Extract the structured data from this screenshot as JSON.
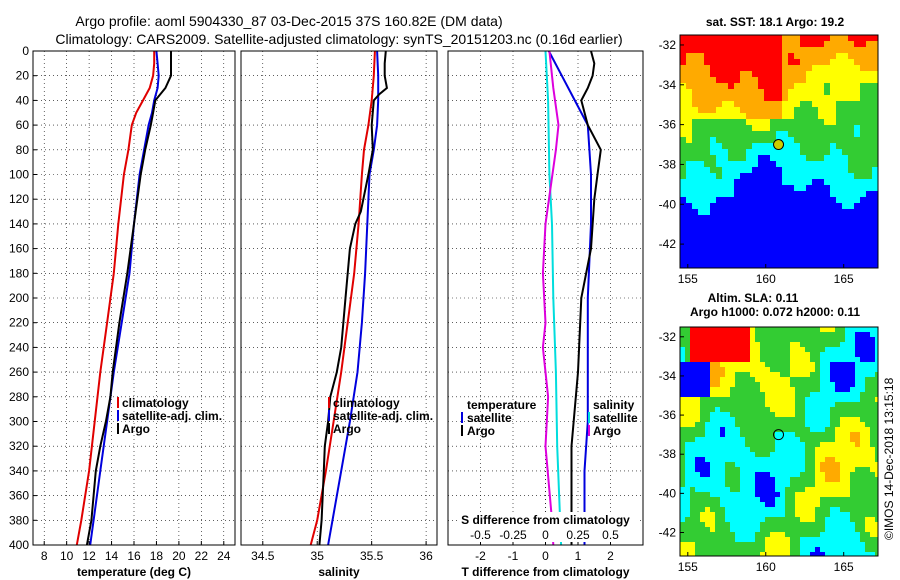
{
  "header": {
    "title_line1": "Argo profile: aoml 5904330_87 03-Dec-2015 37S 160.82E (DM data)",
    "title_line2": "Climatology: CARS2009. Satellite-adjusted climatology: synTS_20151203.nc (0.16d earlier)"
  },
  "watermark": "©IMOS 14-Dec-2018 13:15:18",
  "colors": {
    "climatology": "#e00000",
    "satellite": "#0000dd",
    "argo": "#000000",
    "t_diff_satellite": "#0000dd",
    "s_diff_satellite": "#00dddd",
    "s_diff_argo": "#dd00dd",
    "map_red": "#ff0000",
    "map_orange": "#ffaa00",
    "map_yellow": "#ffff00",
    "map_green": "#33cc33",
    "map_cyan": "#00ffff",
    "map_blue": "#0000ff",
    "marker_fill": "#cccc00"
  },
  "chart_data": [
    {
      "type": "line",
      "id": "temperature",
      "xlabel": "temperature (deg C)",
      "ylabel": "",
      "xlim": [
        7,
        25
      ],
      "ylim": [
        400,
        0
      ],
      "x_ticks": [
        8,
        10,
        12,
        14,
        16,
        18,
        20,
        22,
        24
      ],
      "y_ticks": [
        0,
        20,
        40,
        60,
        80,
        100,
        120,
        140,
        160,
        180,
        200,
        220,
        240,
        260,
        280,
        300,
        320,
        340,
        360,
        380,
        400
      ],
      "grid": true,
      "legend": [
        "climatology",
        "satellite-adj. clim.",
        "Argo"
      ],
      "series": [
        {
          "name": "climatology",
          "color": "climatology",
          "points": [
            [
              17.8,
              0
            ],
            [
              17.8,
              10
            ],
            [
              17.7,
              20
            ],
            [
              17.4,
              30
            ],
            [
              16.8,
              40
            ],
            [
              16.2,
              50
            ],
            [
              15.8,
              60
            ],
            [
              15.5,
              80
            ],
            [
              15.1,
              100
            ],
            [
              14.6,
              140
            ],
            [
              14.2,
              180
            ],
            [
              13.6,
              220
            ],
            [
              13.0,
              260
            ],
            [
              12.5,
              300
            ],
            [
              12.0,
              340
            ],
            [
              11.3,
              380
            ],
            [
              10.9,
              400
            ]
          ]
        },
        {
          "name": "satellite-adj. clim.",
          "color": "satellite",
          "points": [
            [
              18.0,
              0
            ],
            [
              18.1,
              10
            ],
            [
              18.2,
              20
            ],
            [
              18.1,
              30
            ],
            [
              17.8,
              40
            ],
            [
              17.6,
              50
            ],
            [
              17.3,
              60
            ],
            [
              16.9,
              80
            ],
            [
              16.5,
              100
            ],
            [
              16.0,
              140
            ],
            [
              15.6,
              180
            ],
            [
              14.9,
              220
            ],
            [
              14.2,
              260
            ],
            [
              13.6,
              300
            ],
            [
              13.0,
              340
            ],
            [
              12.4,
              380
            ],
            [
              12.1,
              400
            ]
          ]
        },
        {
          "name": "Argo",
          "color": "argo",
          "points": [
            [
              19.3,
              0
            ],
            [
              19.3,
              10
            ],
            [
              19.3,
              20
            ],
            [
              18.8,
              30
            ],
            [
              17.9,
              40
            ],
            [
              17.7,
              50
            ],
            [
              17.5,
              60
            ],
            [
              17.0,
              80
            ],
            [
              16.6,
              100
            ],
            [
              16.0,
              140
            ],
            [
              15.4,
              180
            ],
            [
              14.7,
              220
            ],
            [
              14.1,
              260
            ],
            [
              13.9,
              280
            ],
            [
              13.5,
              300
            ],
            [
              13.0,
              320
            ],
            [
              12.6,
              340
            ],
            [
              12.2,
              380
            ],
            [
              11.8,
              400
            ]
          ]
        }
      ]
    },
    {
      "type": "line",
      "id": "salinity",
      "xlabel": "salinity",
      "xlim": [
        34.3,
        36.1
      ],
      "ylim": [
        400,
        0
      ],
      "x_ticks": [
        34.5,
        35,
        35.5,
        36
      ],
      "grid": true,
      "legend": [
        "climatology",
        "satellite-adj. clim.",
        "Argo"
      ],
      "series": [
        {
          "name": "climatology",
          "color": "climatology",
          "points": [
            [
              35.53,
              0
            ],
            [
              35.52,
              20
            ],
            [
              35.5,
              40
            ],
            [
              35.47,
              60
            ],
            [
              35.43,
              80
            ],
            [
              35.41,
              100
            ],
            [
              35.38,
              140
            ],
            [
              35.34,
              180
            ],
            [
              35.28,
              220
            ],
            [
              35.22,
              260
            ],
            [
              35.15,
              300
            ],
            [
              35.08,
              340
            ],
            [
              35.0,
              380
            ],
            [
              34.94,
              400
            ]
          ]
        },
        {
          "name": "satellite-adj. clim.",
          "color": "satellite",
          "points": [
            [
              35.55,
              0
            ],
            [
              35.56,
              20
            ],
            [
              35.56,
              40
            ],
            [
              35.55,
              60
            ],
            [
              35.52,
              80
            ],
            [
              35.48,
              100
            ],
            [
              35.46,
              140
            ],
            [
              35.44,
              180
            ],
            [
              35.41,
              220
            ],
            [
              35.37,
              260
            ],
            [
              35.3,
              300
            ],
            [
              35.22,
              340
            ],
            [
              35.14,
              380
            ],
            [
              35.1,
              400
            ]
          ]
        },
        {
          "name": "Argo",
          "color": "argo",
          "points": [
            [
              35.63,
              0
            ],
            [
              35.62,
              10
            ],
            [
              35.62,
              20
            ],
            [
              35.64,
              30
            ],
            [
              35.57,
              35
            ],
            [
              35.52,
              40
            ],
            [
              35.5,
              60
            ],
            [
              35.51,
              80
            ],
            [
              35.47,
              100
            ],
            [
              35.4,
              130
            ],
            [
              35.35,
              140
            ],
            [
              35.3,
              160
            ],
            [
              35.26,
              200
            ],
            [
              35.22,
              240
            ],
            [
              35.18,
              260
            ],
            [
              35.12,
              280
            ],
            [
              35.1,
              300
            ],
            [
              35.07,
              320
            ],
            [
              35.06,
              340
            ],
            [
              35.05,
              360
            ],
            [
              35.04,
              380
            ],
            [
              35.02,
              400
            ]
          ]
        }
      ]
    },
    {
      "type": "line",
      "id": "differences",
      "xlabel": "T difference from climatology",
      "top_xlabel": "S difference from climatology",
      "xlim": [
        -3,
        3
      ],
      "ylim": [
        400,
        0
      ],
      "x_ticks": [
        -2,
        -1,
        0,
        1,
        2
      ],
      "top_x_ticks": [
        "-0.5",
        "-0.25",
        "0",
        "0.25",
        "0.5"
      ],
      "top_xlim": [
        -0.75,
        0.75
      ],
      "grid": true,
      "legend_left": {
        "title": "temperature",
        "items": [
          "satellite",
          "Argo"
        ]
      },
      "legend_right": {
        "title": "salinity",
        "items": [
          "satellite",
          "Argo"
        ]
      },
      "series": [
        {
          "name": "T satellite",
          "color": "t_diff_satellite",
          "axis": "T",
          "points": [
            [
              0.1,
              0
            ],
            [
              0.5,
              20
            ],
            [
              0.9,
              40
            ],
            [
              1.3,
              60
            ],
            [
              1.4,
              100
            ],
            [
              1.4,
              140
            ],
            [
              1.3,
              200
            ],
            [
              1.3,
              260
            ],
            [
              1.3,
              300
            ],
            [
              1.2,
              340
            ],
            [
              1.2,
              400
            ]
          ]
        },
        {
          "name": "T Argo",
          "color": "argo",
          "axis": "T",
          "points": [
            [
              1.4,
              0
            ],
            [
              1.5,
              10
            ],
            [
              1.45,
              20
            ],
            [
              1.3,
              30
            ],
            [
              1.1,
              40
            ],
            [
              1.3,
              60
            ],
            [
              1.7,
              80
            ],
            [
              1.6,
              100
            ],
            [
              1.5,
              120
            ],
            [
              1.4,
              160
            ],
            [
              1.1,
              200
            ],
            [
              1.0,
              260
            ],
            [
              0.8,
              320
            ],
            [
              0.8,
              400
            ]
          ]
        },
        {
          "name": "S satellite",
          "color": "s_diff_satellite",
          "axis": "S",
          "points": [
            [
              0.0,
              0
            ],
            [
              0.02,
              40
            ],
            [
              0.03,
              100
            ],
            [
              0.05,
              140
            ],
            [
              0.06,
              200
            ],
            [
              0.08,
              260
            ],
            [
              0.09,
              320
            ],
            [
              0.12,
              400
            ]
          ]
        },
        {
          "name": "S Argo",
          "color": "s_diff_argo",
          "axis": "S",
          "points": [
            [
              0.03,
              0
            ],
            [
              0.06,
              30
            ],
            [
              0.1,
              60
            ],
            [
              0.08,
              80
            ],
            [
              0.0,
              140
            ],
            [
              -0.02,
              180
            ],
            [
              0.0,
              220
            ],
            [
              -0.02,
              240
            ],
            [
              0.0,
              260
            ],
            [
              0.02,
              280
            ],
            [
              0.0,
              320
            ],
            [
              0.05,
              380
            ],
            [
              0.06,
              400
            ]
          ]
        }
      ]
    },
    {
      "type": "heatmap",
      "id": "sst-map",
      "title": "sat. SST: 18.1 Argo: 19.2",
      "xlim": [
        154.5,
        167.2
      ],
      "ylim": [
        -43.2,
        -31.5
      ],
      "x_ticks": [
        155,
        160,
        165
      ],
      "y_ticks": [
        -32,
        -34,
        -36,
        -38,
        -40,
        -42
      ],
      "marker": [
        160.82,
        -37
      ]
    },
    {
      "type": "heatmap",
      "id": "sla-map",
      "title_line1": "Altim. SLA: 0.11",
      "title_line2": "Argo h1000: 0.072 h2000: 0.11",
      "xlim": [
        154.5,
        167.2
      ],
      "ylim": [
        -43.2,
        -31.5
      ],
      "x_ticks": [
        155,
        160,
        165
      ],
      "y_ticks": [
        -32,
        -34,
        -36,
        -38,
        -40,
        -42
      ],
      "marker": [
        160.82,
        -37
      ]
    }
  ]
}
